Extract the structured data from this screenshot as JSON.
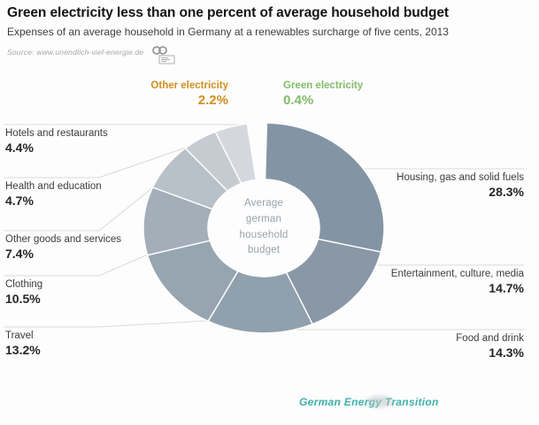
{
  "header": {
    "title": "Green electricity less than one percent of average household budget",
    "subtitle": "Expenses of an average household in Germany at a renewables surcharge of five cents, 2013",
    "source": "Source: www.unendlich-viel-energie.de"
  },
  "chart_data": {
    "type": "pie",
    "subtype": "donut",
    "title": "Green electricity less than one percent of average household budget",
    "center_label": "Average\ngerman\nhousehold\nbudget",
    "unit": "percent of average german household budget",
    "start_angle_deg": 0,
    "direction": "clockwise",
    "segments": [
      {
        "label": "Green electricity",
        "value": 0.4,
        "display": "0.4%",
        "color": "#56ae45",
        "label_color": "#83bb69"
      },
      {
        "label": "Housing, gas and solid fuels",
        "value": 28.3,
        "display": "28.3%",
        "color": "#8394a5"
      },
      {
        "label": "Entertainment, culture, media",
        "value": 14.7,
        "display": "14.7%",
        "color": "#8997a6"
      },
      {
        "label": "Food and drink",
        "value": 14.3,
        "display": "14.3%",
        "color": "#90a0ac"
      },
      {
        "label": "Travel",
        "value": 13.2,
        "display": "13.2%",
        "color": "#96a5b0"
      },
      {
        "label": "Clothing",
        "value": 10.5,
        "display": "10.5%",
        "color": "#a3aeb8"
      },
      {
        "label": "Other goods and services",
        "value": 7.4,
        "display": "7.4%",
        "color": "#b8c0c8"
      },
      {
        "label": "Health and education",
        "value": 4.7,
        "display": "4.7%",
        "color": "#c6cbd2"
      },
      {
        "label": "Hotels and restaurants",
        "value": 4.4,
        "display": "4.4%",
        "color": "#d4d8de"
      },
      {
        "label": "Other electricity",
        "value": 2.2,
        "display": "2.2%",
        "color": "#eeb04b",
        "label_color": "#cf8f1f"
      }
    ]
  },
  "footer": {
    "logo_text": "German Energy Transition"
  },
  "colors": {
    "leader_line": "#d8dadc",
    "footer_teal": "#3db1ab",
    "center_text": "#99a1aa"
  }
}
